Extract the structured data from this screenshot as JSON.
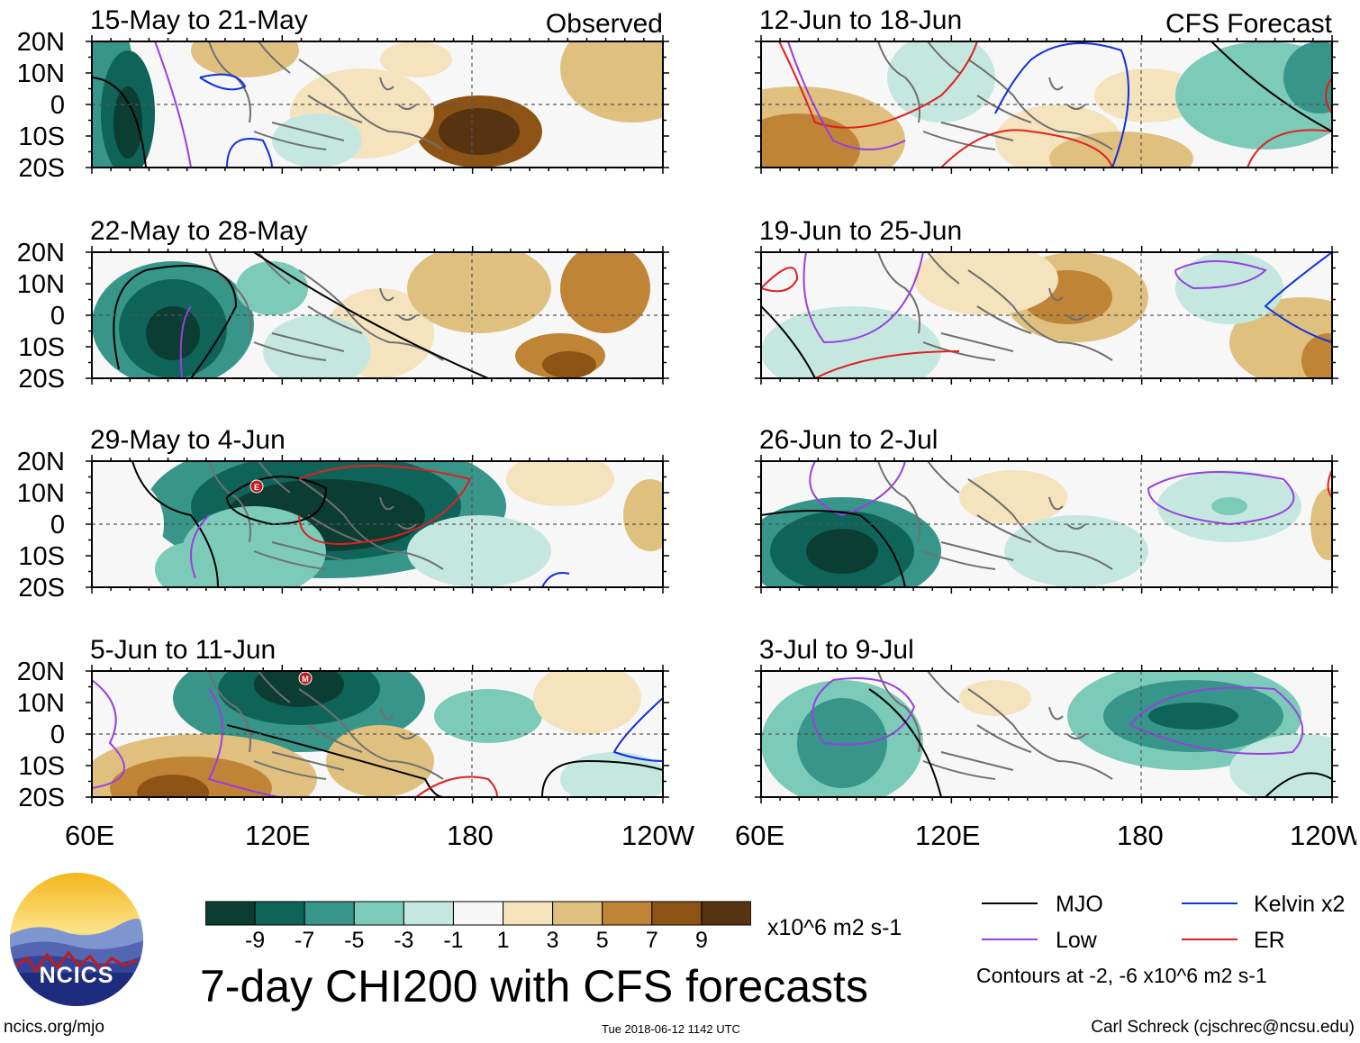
{
  "header": {
    "observed_label": "Observed",
    "forecast_label": "CFS Forecast"
  },
  "panels": [
    {
      "title": "15-May to 21-May",
      "column": "observed",
      "row": 0,
      "has_cyclone_symbol": false,
      "cyclone_letter": ""
    },
    {
      "title": "22-May to 28-May",
      "column": "observed",
      "row": 1,
      "has_cyclone_symbol": false,
      "cyclone_letter": ""
    },
    {
      "title": "29-May to 4-Jun",
      "column": "observed",
      "row": 2,
      "has_cyclone_symbol": true,
      "cyclone_letter": "E"
    },
    {
      "title": "5-Jun to 11-Jun",
      "column": "observed",
      "row": 3,
      "has_cyclone_symbol": true,
      "cyclone_letter": "M"
    },
    {
      "title": "12-Jun to 18-Jun",
      "column": "forecast",
      "row": 0,
      "has_cyclone_symbol": false,
      "cyclone_letter": ""
    },
    {
      "title": "19-Jun to 25-Jun",
      "column": "forecast",
      "row": 1,
      "has_cyclone_symbol": false,
      "cyclone_letter": ""
    },
    {
      "title": "26-Jun to 2-Jul",
      "column": "forecast",
      "row": 2,
      "has_cyclone_symbol": false,
      "cyclone_letter": ""
    },
    {
      "title": "3-Jul to 9-Jul",
      "column": "forecast",
      "row": 3,
      "has_cyclone_symbol": false,
      "cyclone_letter": ""
    }
  ],
  "axes": {
    "lat_labels": [
      "20N",
      "10N",
      "0",
      "10S",
      "20S"
    ],
    "lon_labels": [
      "60E",
      "120E",
      "180",
      "120W"
    ]
  },
  "colorbar": {
    "colors": [
      "#0b3d33",
      "#0f6459",
      "#37958a",
      "#7ccbb9",
      "#c4e8df",
      "#f7f7f7",
      "#f4e3bd",
      "#dfc07f",
      "#bf8436",
      "#8d5314",
      "#573411"
    ],
    "ticks": [
      "-9",
      "-7",
      "-5",
      "-3",
      "-1",
      "1",
      "3",
      "5",
      "7",
      "9"
    ],
    "units": "x10^6 m2 s-1"
  },
  "title": "7-day CHI200 with CFS forecasts",
  "legend": {
    "items": [
      {
        "label": "MJO",
        "color": "#000000"
      },
      {
        "label": "Kelvin x2",
        "color": "#1030e0"
      },
      {
        "label": "Low",
        "color": "#9a3fe0"
      },
      {
        "label": "ER",
        "color": "#e02020"
      }
    ],
    "contours_note": "Contours at -2, -6 x10^6 m2 s-1"
  },
  "logo": {
    "text": "NCICS"
  },
  "footer": {
    "source": "ncics.org/mjo",
    "timestamp": "Tue 2018-06-12 1142 UTC",
    "author": "Carl Schreck (cjschrec@ncsu.edu)"
  }
}
